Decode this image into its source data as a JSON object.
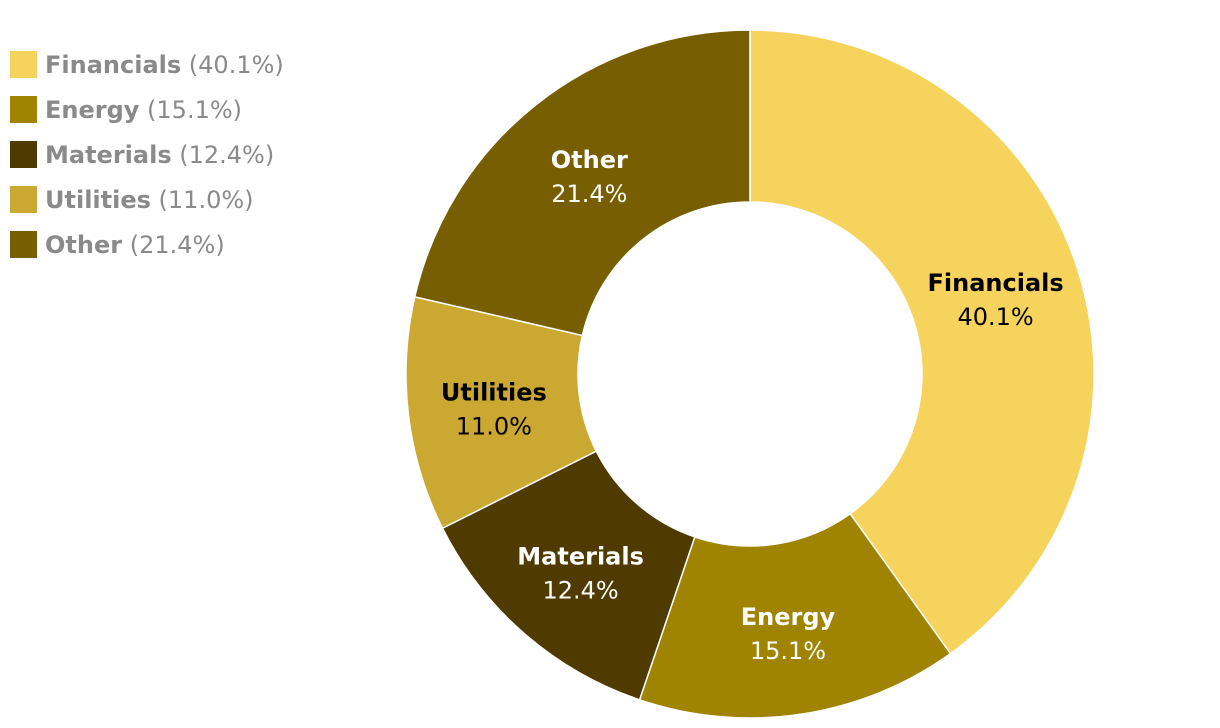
{
  "chart_data": {
    "type": "pie",
    "style": "donut",
    "categories": [
      "Financials",
      "Energy",
      "Materials",
      "Utilities",
      "Other"
    ],
    "values": [
      40.1,
      15.1,
      12.4,
      11.0,
      21.4
    ],
    "value_labels": [
      "40.1%",
      "15.1%",
      "12.4%",
      "11.0%",
      "21.4%"
    ],
    "legend_pcts": [
      "(40.1%)",
      "(15.1%)",
      "(12.4%)",
      "(11.0%)",
      "(21.4%)"
    ],
    "colors": [
      "#f5d35c",
      "#a08300",
      "#4f3b00",
      "#cba831",
      "#775e00"
    ],
    "label_colors": [
      "#000000",
      "#ffffff",
      "#ffffff",
      "#000000",
      "#ffffff"
    ],
    "legend_placement": "top-left",
    "start": "12 o'clock, clockwise"
  }
}
